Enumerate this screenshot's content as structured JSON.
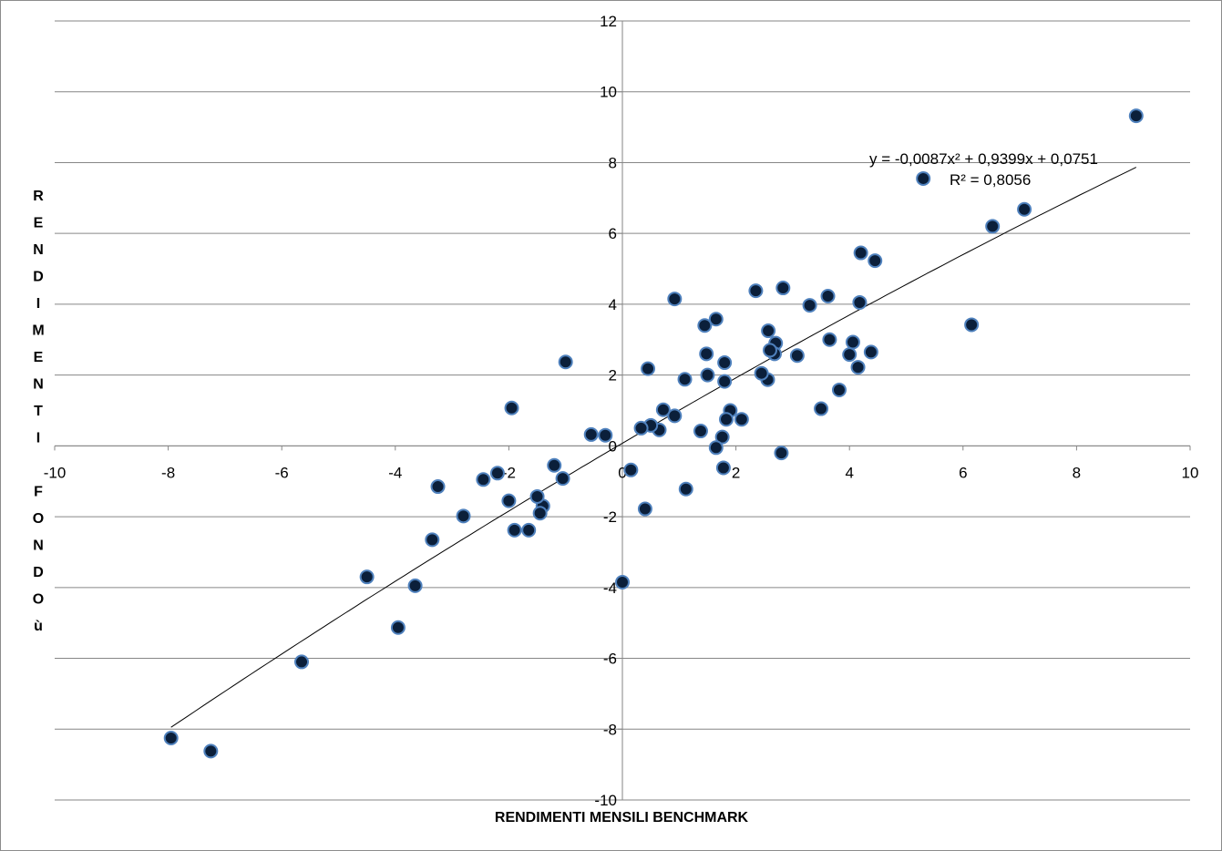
{
  "chart_data": {
    "type": "scatter",
    "xlabel": "RENDIMENTI MENSILI BENCHMARK",
    "ylabel": "RENDIMENTI FONDOù",
    "xlim": [
      -10,
      10
    ],
    "ylim": [
      -10,
      12
    ],
    "x_ticks": [
      -10,
      -8,
      -6,
      -4,
      -2,
      0,
      2,
      4,
      6,
      8,
      10
    ],
    "y_ticks": [
      -10,
      -8,
      -6,
      -4,
      -2,
      0,
      2,
      4,
      6,
      8,
      10,
      12
    ],
    "grid": "horizontal major gridlines",
    "marker_color": "#0b1f3a",
    "marker_edge_color": "#4f81bd",
    "trendline": {
      "type": "polynomial (order 2)",
      "equation": "y = -0,0087x² + 0,9399x + 0,0751",
      "r_squared": "R² = 0,8056",
      "coefficients": [
        -0.0087,
        0.9399,
        0.0751
      ],
      "x_range": [
        -7.95,
        9.05
      ]
    },
    "points": [
      [
        9.05,
        9.32
      ],
      [
        7.08,
        6.68
      ],
      [
        6.52,
        6.2
      ],
      [
        6.15,
        3.42
      ],
      [
        4.45,
        5.23
      ],
      [
        4.2,
        5.45
      ],
      [
        4.18,
        4.05
      ],
      [
        4.38,
        2.65
      ],
      [
        4.15,
        2.22
      ],
      [
        4.06,
        2.93
      ],
      [
        4.0,
        2.58
      ],
      [
        3.82,
        1.58
      ],
      [
        3.65,
        3.0
      ],
      [
        3.62,
        4.23
      ],
      [
        3.5,
        1.05
      ],
      [
        3.3,
        3.97
      ],
      [
        3.08,
        2.55
      ],
      [
        2.83,
        4.46
      ],
      [
        2.8,
        -0.2
      ],
      [
        2.7,
        2.9
      ],
      [
        2.68,
        2.6
      ],
      [
        2.6,
        2.7
      ],
      [
        2.57,
        3.25
      ],
      [
        2.56,
        1.87
      ],
      [
        2.45,
        2.05
      ],
      [
        2.35,
        4.38
      ],
      [
        2.1,
        0.75
      ],
      [
        1.9,
        1.0
      ],
      [
        1.83,
        0.75
      ],
      [
        1.8,
        2.35
      ],
      [
        1.8,
        1.82
      ],
      [
        1.78,
        -0.62
      ],
      [
        1.76,
        0.25
      ],
      [
        1.65,
        3.58
      ],
      [
        1.65,
        -0.05
      ],
      [
        1.5,
        2.0
      ],
      [
        1.48,
        2.6
      ],
      [
        1.45,
        3.4
      ],
      [
        1.38,
        0.42
      ],
      [
        1.12,
        -1.22
      ],
      [
        1.1,
        1.88
      ],
      [
        0.92,
        0.85
      ],
      [
        0.92,
        4.15
      ],
      [
        0.72,
        1.02
      ],
      [
        0.65,
        0.45
      ],
      [
        0.5,
        0.58
      ],
      [
        0.45,
        2.18
      ],
      [
        0.4,
        -1.78
      ],
      [
        0.33,
        0.5
      ],
      [
        0.15,
        -0.68
      ],
      [
        0.0,
        -3.85
      ],
      [
        -0.3,
        0.3
      ],
      [
        -0.55,
        0.32
      ],
      [
        -1.0,
        2.37
      ],
      [
        -1.05,
        -0.92
      ],
      [
        -1.2,
        -0.55
      ],
      [
        -1.4,
        -1.7
      ],
      [
        -1.45,
        -1.9
      ],
      [
        -1.5,
        -1.43
      ],
      [
        -1.65,
        -2.38
      ],
      [
        -1.9,
        -2.38
      ],
      [
        -1.95,
        1.07
      ],
      [
        -2.0,
        -1.55
      ],
      [
        -2.2,
        -0.77
      ],
      [
        -2.45,
        -0.95
      ],
      [
        -2.8,
        -1.98
      ],
      [
        -3.25,
        -1.15
      ],
      [
        -3.35,
        -2.65
      ],
      [
        -3.65,
        -3.95
      ],
      [
        -3.95,
        -5.13
      ],
      [
        -4.5,
        -3.7
      ],
      [
        -5.65,
        -6.1
      ],
      [
        -7.25,
        -8.62
      ],
      [
        -7.95,
        -8.25
      ],
      [
        5.3,
        7.55
      ]
    ]
  }
}
